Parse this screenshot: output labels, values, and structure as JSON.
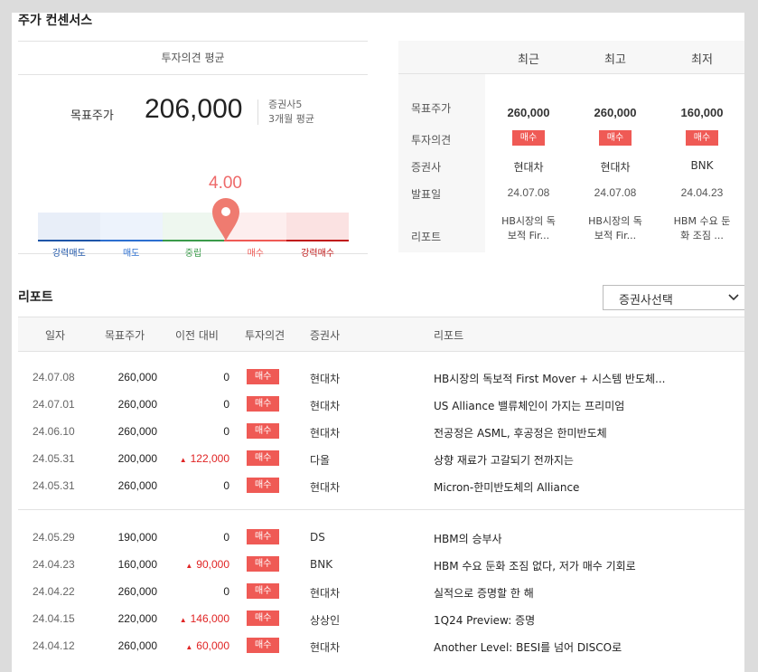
{
  "section_title": "주가 컨센서스",
  "consensus": {
    "header": "투자의견 평균",
    "target_label": "목표주가",
    "target_value": "206,000",
    "broker_count": "증권사5",
    "period": "3개월 평균",
    "score": "4.00",
    "score_value": 4.0,
    "scale_labels": [
      "강력매도",
      "매도",
      "중립",
      "매수",
      "강력매수"
    ],
    "scale_colors": [
      "#1e55a8",
      "#2c6fd0",
      "#3a9a4a",
      "#ef5a55",
      "#c01818"
    ]
  },
  "summary": {
    "columns": [
      "최근",
      "최고",
      "최저"
    ],
    "row_labels": {
      "target": "목표주가",
      "opinion": "투자의견",
      "broker": "증권사",
      "date": "발표일",
      "report": "리포트"
    },
    "rows": [
      {
        "target": "260,000",
        "opinion": "매수",
        "broker": "현대차",
        "date": "24.07.08",
        "report1": "HB시장의 독",
        "report2": "보적 Fir..."
      },
      {
        "target": "260,000",
        "opinion": "매수",
        "broker": "현대차",
        "date": "24.07.08",
        "report1": "HB시장의 독",
        "report2": "보적 Fir..."
      },
      {
        "target": "160,000",
        "opinion": "매수",
        "broker": "BNK",
        "date": "24.04.23",
        "report1": "HBM 수요 둔",
        "report2": "화 조짐 ..."
      }
    ]
  },
  "reports": {
    "title": "리포트",
    "select_label": "증권사선택",
    "headers": [
      "일자",
      "목표주가",
      "이전 대비",
      "투자의견",
      "증권사",
      "리포트"
    ],
    "rows": [
      {
        "date": "24.07.08",
        "target": "260,000",
        "change": "0",
        "up": false,
        "opinion": "매수",
        "broker": "현대차",
        "title": "HB시장의 독보적 First Mover + 시스템 반도체..."
      },
      {
        "date": "24.07.01",
        "target": "260,000",
        "change": "0",
        "up": false,
        "opinion": "매수",
        "broker": "현대차",
        "title": "US Alliance 밸류체인이 가지는 프리미엄"
      },
      {
        "date": "24.06.10",
        "target": "260,000",
        "change": "0",
        "up": false,
        "opinion": "매수",
        "broker": "현대차",
        "title": "전공정은 ASML, 후공정은 한미반도체"
      },
      {
        "date": "24.05.31",
        "target": "200,000",
        "change": "122,000",
        "up": true,
        "opinion": "매수",
        "broker": "다올",
        "title": "상향 재료가 고갈되기 전까지는"
      },
      {
        "date": "24.05.31",
        "target": "260,000",
        "change": "0",
        "up": false,
        "opinion": "매수",
        "broker": "현대차",
        "title": "Micron-한미반도체의 Alliance"
      },
      {
        "date": "24.05.29",
        "target": "190,000",
        "change": "0",
        "up": false,
        "opinion": "매수",
        "broker": "DS",
        "title": "HBM의 승부사"
      },
      {
        "date": "24.04.23",
        "target": "160,000",
        "change": "90,000",
        "up": true,
        "opinion": "매수",
        "broker": "BNK",
        "title": "HBM 수요 둔화 조짐 없다, 저가 매수 기회로"
      },
      {
        "date": "24.04.22",
        "target": "260,000",
        "change": "0",
        "up": false,
        "opinion": "매수",
        "broker": "현대차",
        "title": "실적으로 증명할 한 해"
      },
      {
        "date": "24.04.15",
        "target": "220,000",
        "change": "146,000",
        "up": true,
        "opinion": "매수",
        "broker": "상상인",
        "title": "1Q24 Preview: 증명"
      },
      {
        "date": "24.04.12",
        "target": "260,000",
        "change": "60,000",
        "up": true,
        "opinion": "매수",
        "broker": "현대차",
        "title": "Another Level: BESI를 넘어 DISCO로"
      }
    ]
  }
}
